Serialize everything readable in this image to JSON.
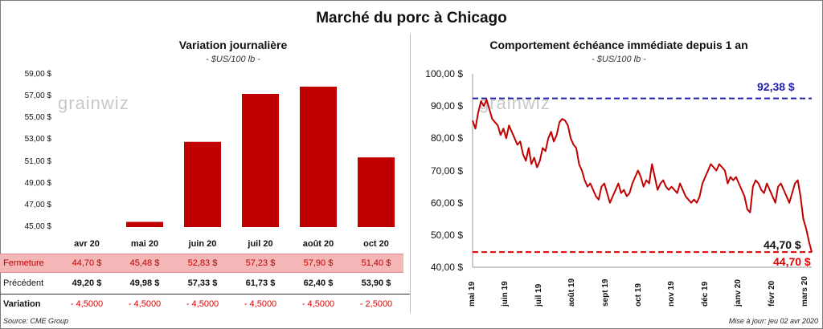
{
  "title": "Marché du porc à Chicago",
  "left": {
    "title": "Variation  journalière",
    "unit": "- $US/100 lb -",
    "yticks": [
      "59,00 $",
      "57,00 $",
      "55,00 $",
      "53,00 $",
      "51,00 $",
      "49,00 $",
      "47,00 $",
      "45,00 $"
    ],
    "watermark": "grainwiz",
    "table": {
      "fermeture_label": "Fermeture",
      "precedent_label": "Précédent",
      "variation_label": "Variation",
      "fermeture": [
        "44,70  $",
        "45,48  $",
        "52,83  $",
        "57,23  $",
        "57,90  $",
        "51,40  $"
      ],
      "precedent": [
        "49,20  $",
        "49,98  $",
        "57,33  $",
        "61,73  $",
        "62,40  $",
        "53,90  $"
      ],
      "variation": [
        "- 4,5000",
        "- 4,5000",
        "- 4,5000",
        "- 4,5000",
        "- 4,5000",
        "- 2,5000"
      ]
    }
  },
  "right": {
    "title": "Comportement  échéance immédiate depuis 1 an",
    "unit": "- $US/100 lb -",
    "yticks": [
      "100,00 $",
      "90,00 $",
      "80,00 $",
      "70,00 $",
      "60,00 $",
      "50,00 $",
      "40,00 $"
    ],
    "xticks": [
      "mai 19",
      "juin 19",
      "juil 19",
      "août 19",
      "sept 19",
      "oct 19",
      "nov 19",
      "déc 19",
      "janv 20",
      "févr 20",
      "mars 20"
    ],
    "high_label": "92,38 $",
    "last_label": "44,70 $",
    "low_label": "44,70 $",
    "watermark": "grainwiz"
  },
  "footer": {
    "source": "Source: CME Group",
    "update": "Mise à jour: jeu 02 avr 2020"
  },
  "colors": {
    "bar": "#c00000",
    "line": "#c00000",
    "high_line": "#1f1fa8",
    "low_line": "#e00000",
    "fermeture_bg": "#f4b6b6",
    "negative": "#e00000"
  },
  "chart_data": [
    {
      "type": "bar",
      "title": "Variation  journalière",
      "categories": [
        "avr 20",
        "mai 20",
        "juin 20",
        "juil 20",
        "août 20",
        "oct 20"
      ],
      "values": [
        44.7,
        45.48,
        52.83,
        57.23,
        57.9,
        51.4
      ],
      "ylim": [
        45,
        59
      ],
      "ylabel": "$US/100 lb",
      "grid": false
    },
    {
      "type": "line",
      "title": "Comportement  échéance immédiate depuis 1 an",
      "ylabel": "$US/100 lb",
      "ylim": [
        40,
        100
      ],
      "x_range": [
        "mai 19",
        "mars 20"
      ],
      "series": [
        {
          "values": [
            85.5,
            83,
            88,
            91.5,
            90,
            92,
            89,
            86,
            85,
            84,
            81,
            83,
            80,
            84,
            82,
            80,
            78,
            79,
            75,
            73,
            77,
            72,
            74,
            71,
            73,
            77,
            76,
            80,
            82,
            79,
            81,
            85,
            86,
            85.5,
            84,
            80,
            78,
            77,
            72,
            70,
            67,
            65,
            66,
            64,
            62,
            61,
            65,
            66,
            63,
            60,
            62,
            64,
            66,
            63,
            64,
            62,
            63,
            66,
            68,
            70,
            68,
            65,
            67,
            66,
            72,
            68,
            64,
            66,
            67,
            65,
            64,
            65,
            64,
            63,
            66,
            64,
            62,
            61,
            60,
            61,
            60,
            62,
            66,
            68,
            70,
            72,
            71,
            70,
            72,
            71,
            70,
            66,
            68,
            67,
            68,
            66,
            64,
            62,
            58,
            57,
            65,
            67,
            66,
            64,
            63,
            66,
            64,
            62,
            60,
            65,
            66,
            64,
            62,
            60,
            63,
            66,
            67,
            62,
            55,
            52,
            48,
            44.7
          ]
        }
      ],
      "reference_lines": [
        {
          "value": 92.38,
          "label": "92,38 $"
        },
        {
          "value": 44.7,
          "label": "44,70 $"
        }
      ]
    }
  ]
}
